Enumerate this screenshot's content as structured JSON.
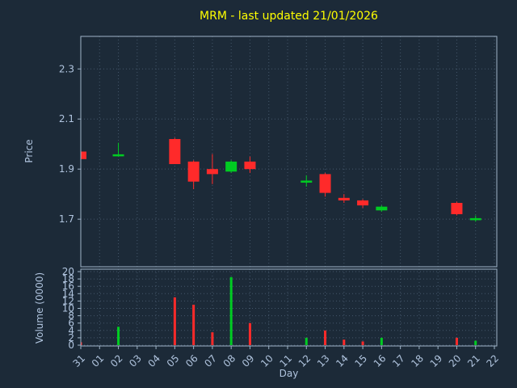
{
  "chart_data": {
    "type": "candlestick_with_volume",
    "title": "MRM - last updated 21/01/2026",
    "xlabel": "Day",
    "ylabel_price": "Price",
    "ylabel_volume": "Volume (0000)",
    "categories": [
      "31",
      "01",
      "02",
      "03",
      "04",
      "05",
      "06",
      "07",
      "08",
      "09",
      "10",
      "11",
      "12",
      "13",
      "14",
      "15",
      "16",
      "17",
      "18",
      "19",
      "20",
      "21",
      "22"
    ],
    "price_ticks": [
      1.7,
      1.9,
      2.1,
      2.3
    ],
    "price_range": [
      1.51,
      2.43
    ],
    "volume_ticks": [
      0,
      2,
      4,
      6,
      8,
      10,
      12,
      14,
      16,
      18,
      20
    ],
    "volume_range": [
      0,
      20
    ],
    "grid": "dotted",
    "candles": [
      {
        "day": "31",
        "open": 1.97,
        "high": 1.975,
        "low": 1.94,
        "close": 1.94
      },
      {
        "day": "02",
        "open": 1.955,
        "high": 2.005,
        "low": 1.95,
        "close": 1.955
      },
      {
        "day": "05",
        "open": 2.02,
        "high": 2.025,
        "low": 1.92,
        "close": 1.92
      },
      {
        "day": "06",
        "open": 1.93,
        "high": 1.935,
        "low": 1.82,
        "close": 1.85
      },
      {
        "day": "07",
        "open": 1.9,
        "high": 1.96,
        "low": 1.84,
        "close": 1.88
      },
      {
        "day": "08",
        "open": 1.89,
        "high": 1.935,
        "low": 1.885,
        "close": 1.93
      },
      {
        "day": "09",
        "open": 1.93,
        "high": 1.95,
        "low": 1.885,
        "close": 1.9
      },
      {
        "day": "12",
        "open": 1.85,
        "high": 1.875,
        "low": 1.83,
        "close": 1.85
      },
      {
        "day": "13",
        "open": 1.88,
        "high": 1.885,
        "low": 1.79,
        "close": 1.805
      },
      {
        "day": "14",
        "open": 1.785,
        "high": 1.8,
        "low": 1.765,
        "close": 1.775
      },
      {
        "day": "15",
        "open": 1.775,
        "high": 1.78,
        "low": 1.745,
        "close": 1.755
      },
      {
        "day": "16",
        "open": 1.735,
        "high": 1.755,
        "low": 1.73,
        "close": 1.75
      },
      {
        "day": "20",
        "open": 1.765,
        "high": 1.77,
        "low": 1.715,
        "close": 1.72
      },
      {
        "day": "21",
        "open": 1.7,
        "high": 1.715,
        "low": 1.69,
        "close": 1.7
      }
    ],
    "volumes": [
      {
        "day": "31",
        "value": 0.8
      },
      {
        "day": "02",
        "value": 5.0
      },
      {
        "day": "05",
        "value": 13.0
      },
      {
        "day": "06",
        "value": 11.0
      },
      {
        "day": "07",
        "value": 3.5
      },
      {
        "day": "08",
        "value": 18.5
      },
      {
        "day": "09",
        "value": 6.0
      },
      {
        "day": "12",
        "value": 2.0
      },
      {
        "day": "13",
        "value": 4.0
      },
      {
        "day": "14",
        "value": 1.5
      },
      {
        "day": "15",
        "value": 1.0
      },
      {
        "day": "16",
        "value": 2.0
      },
      {
        "day": "20",
        "value": 2.0
      },
      {
        "day": "21",
        "value": 1.2
      }
    ],
    "colors": {
      "up": "#00cc22",
      "down": "#ff2a2a",
      "background": "#1c2a38",
      "title": "#ffff00",
      "axis_text": "#b0c4de",
      "grid": "#44566a",
      "frame": "#9fb4c8"
    }
  }
}
